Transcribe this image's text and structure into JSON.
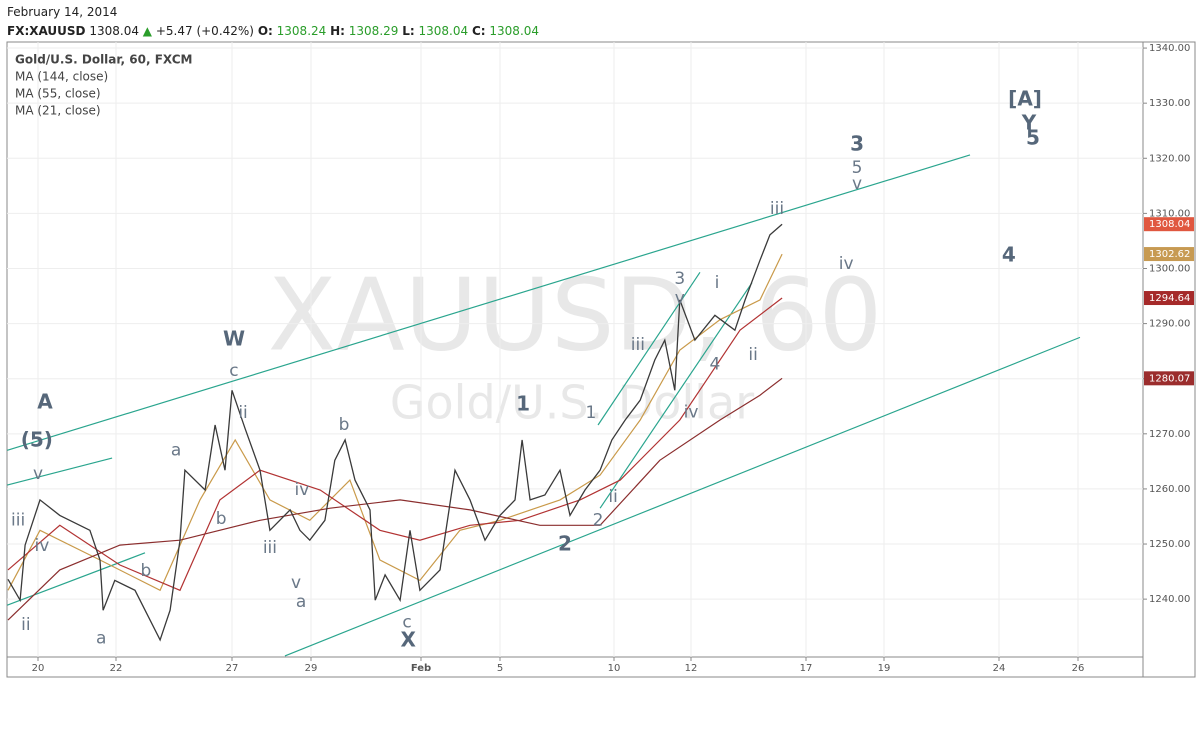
{
  "header": {
    "date": "February 14, 2014",
    "symbol": "FX:XAUUSD",
    "price": "1308.04",
    "arrow": "▲",
    "change": "+5.47 (+0.42%)",
    "ohlc": [
      {
        "label": "O:",
        "value": "1308.24"
      },
      {
        "label": "H:",
        "value": "1308.29"
      },
      {
        "label": "L:",
        "value": "1308.04"
      },
      {
        "label": "C:",
        "value": "1308.04"
      }
    ]
  },
  "chart_data": {
    "type": "line",
    "watermark": [
      "XAUUSD, 60",
      "Gold/U.S. Dollar"
    ],
    "xlim": [
      19.2,
      58.65
    ],
    "ylim": [
      1229.5,
      1341.1
    ],
    "xticks": [
      20,
      22,
      27,
      29,
      {
        "value": 32,
        "label": "Feb"
      },
      {
        "value": 36,
        "label": "5"
      },
      {
        "value": 41,
        "label": "10"
      },
      {
        "value": 43,
        "label": "12"
      },
      {
        "value": 48,
        "label": "17"
      },
      {
        "value": 50,
        "label": "19"
      },
      {
        "value": 55,
        "label": "24"
      },
      {
        "value": 57,
        "label": "26"
      }
    ],
    "yticks": [
      {
        "value": 1240,
        "label": "1240.00"
      },
      {
        "value": 1250,
        "label": "1250.00"
      },
      {
        "value": 1260,
        "label": "1260.00"
      },
      {
        "value": 1270,
        "label": "1270.00"
      },
      {
        "value": 1280,
        "label": "1280.00"
      },
      {
        "value": 1290,
        "label": "1290.00"
      },
      {
        "value": 1300,
        "label": "1300.00"
      },
      {
        "value": 1310,
        "label": "1310.00"
      },
      {
        "value": 1320,
        "label": "1320.00"
      },
      {
        "value": 1330,
        "label": "1330.00"
      },
      {
        "value": 1340,
        "label": "1340.00"
      }
    ],
    "grid": true,
    "series": [
      {
        "name": "Gold/U.S. Dollar, 60, FXCM",
        "color": "#3a3a3a",
        "label_color": "#e0573f",
        "x": [
          19.23,
          19.54,
          19.67,
          20.05,
          20.56,
          21.33,
          21.59,
          21.67,
          21.97,
          22.82,
          23.9,
          24.33,
          24.76,
          24.97,
          25.84,
          26.27,
          26.7,
          27.0,
          27.33,
          27.71,
          27.96,
          28.47,
          28.72,
          28.97,
          29.38,
          29.65,
          29.93,
          30.2,
          30.61,
          30.75,
          31.02,
          31.43,
          31.7,
          31.97,
          32.96,
          33.72,
          34.48,
          35.24,
          36.0,
          36.66,
          36.97,
          37.32,
          37.97,
          38.63,
          39.07,
          39.73,
          40.39,
          40.91,
          41.29,
          41.68,
          42.06,
          42.32,
          42.58,
          42.71,
          43.17,
          44.04,
          44.91,
          45.35,
          46.0,
          46.43,
          46.96
        ],
        "values": [
          1243.6,
          1239.8,
          1249.8,
          1258.0,
          1255.2,
          1252.5,
          1247.1,
          1238.0,
          1243.4,
          1241.6,
          1232.6,
          1238.0,
          1250.7,
          1263.4,
          1259.8,
          1271.6,
          1263.4,
          1277.9,
          1271.0,
          1263.4,
          1252.5,
          1256.2,
          1252.5,
          1250.7,
          1254.3,
          1265.2,
          1268.9,
          1261.6,
          1256.2,
          1239.8,
          1244.4,
          1239.8,
          1252.5,
          1241.6,
          1245.3,
          1263.4,
          1258.0,
          1250.7,
          1255.2,
          1258.0,
          1268.9,
          1258.0,
          1258.9,
          1263.4,
          1255.2,
          1259.8,
          1263.4,
          1268.9,
          1272.5,
          1276.1,
          1283.4,
          1287.0,
          1277.9,
          1294.3,
          1287.0,
          1291.5,
          1288.8,
          1294.3,
          1301.5,
          1306.1,
          1308.04
        ]
      },
      {
        "name": "MA (144, close)",
        "color": "#8b2e2e",
        "label_color": "#9b2d2d",
        "x": [
          19.23,
          20.56,
          22.17,
          24.76,
          27.71,
          29.52,
          31.43,
          34.48,
          37.75,
          40.39,
          42.19,
          44.26,
          46.0,
          46.96
        ],
        "values": [
          1236.2,
          1245.3,
          1249.8,
          1250.7,
          1254.3,
          1256.5,
          1258.0,
          1256.2,
          1253.4,
          1253.4,
          1265.2,
          1272.5,
          1277.0,
          1280.07
        ]
      },
      {
        "name": "MA (55, close)",
        "color": "#b23333",
        "label_color": "#a52a2a",
        "x": [
          19.23,
          20.56,
          22.17,
          24.76,
          26.48,
          27.71,
          29.25,
          30.88,
          31.97,
          34.48,
          36.88,
          39.51,
          41.16,
          42.71,
          45.13,
          46.96
        ],
        "values": [
          1245.3,
          1253.4,
          1246.2,
          1241.6,
          1258.0,
          1263.4,
          1259.8,
          1252.5,
          1250.7,
          1253.4,
          1254.3,
          1258.0,
          1261.6,
          1272.5,
          1288.8,
          1294.64
        ]
      },
      {
        "name": "MA (21, close)",
        "color": "#c99a4a",
        "label_color": "#c79a52",
        "x": [
          19.23,
          20.05,
          21.59,
          23.9,
          25.62,
          27.08,
          27.96,
          28.97,
          30.06,
          30.88,
          31.97,
          33.97,
          36.0,
          38.63,
          40.39,
          41.68,
          42.71,
          44.26,
          46.0,
          46.96
        ],
        "values": [
          1241.6,
          1252.5,
          1247.1,
          1241.6,
          1258.0,
          1268.9,
          1258.0,
          1254.3,
          1261.6,
          1247.1,
          1243.4,
          1252.5,
          1254.3,
          1258.0,
          1262.5,
          1272.5,
          1285.2,
          1290.7,
          1294.3,
          1302.62
        ]
      }
    ],
    "trendline_color": "#2aa58e",
    "trendlines": [
      {
        "x": [
          19.21,
          53.74
        ],
        "y": [
          1267.0,
          1320.6
        ]
      },
      {
        "x": [
          28.34,
          57.05
        ],
        "y": [
          1229.7,
          1287.5
        ]
      },
      {
        "x": [
          19.21,
          21.9
        ],
        "y": [
          1260.7,
          1265.6
        ]
      },
      {
        "x": [
          19.21,
          23.25
        ],
        "y": [
          1238.9,
          1248.4
        ]
      },
      {
        "x": [
          40.3,
          43.39
        ],
        "y": [
          1271.6,
          1299.3
        ]
      },
      {
        "x": [
          40.39,
          45.65
        ],
        "y": [
          1256.5,
          1297.4
        ]
      }
    ],
    "annotations": [
      {
        "text": "A",
        "x": 20.18,
        "y": 1275.6,
        "bold": true
      },
      {
        "text": "(5)",
        "x": 19.97,
        "y": 1268.7,
        "bold": true
      },
      {
        "text": "v",
        "x": 20.0,
        "y": 1262.7
      },
      {
        "text": "iii",
        "x": 19.49,
        "y": 1254.3
      },
      {
        "text": "iv",
        "x": 20.1,
        "y": 1249.6
      },
      {
        "text": "ii",
        "x": 19.69,
        "y": 1235.3
      },
      {
        "text": "a",
        "x": 21.62,
        "y": 1232.9
      },
      {
        "text": "b",
        "x": 23.29,
        "y": 1245.1
      },
      {
        "text": "a",
        "x": 24.59,
        "y": 1267.0
      },
      {
        "text": "b",
        "x": 26.53,
        "y": 1254.5
      },
      {
        "text": "W",
        "x": 27.05,
        "y": 1287.0,
        "bold": true
      },
      {
        "text": "c",
        "x": 27.05,
        "y": 1281.4
      },
      {
        "text": "ii",
        "x": 27.28,
        "y": 1273.8
      },
      {
        "text": "iii",
        "x": 27.96,
        "y": 1249.3
      },
      {
        "text": "iv",
        "x": 28.77,
        "y": 1259.8
      },
      {
        "text": "v",
        "x": 28.62,
        "y": 1242.9
      },
      {
        "text": "a",
        "x": 28.75,
        "y": 1239.5
      },
      {
        "text": "b",
        "x": 29.9,
        "y": 1271.6
      },
      {
        "text": "X",
        "x": 31.65,
        "y": 1232.4,
        "bold": true
      },
      {
        "text": "c",
        "x": 31.62,
        "y": 1235.8
      },
      {
        "text": "1",
        "x": 37.01,
        "y": 1275.2,
        "bold": true
      },
      {
        "text": "2",
        "x": 38.85,
        "y": 1249.8,
        "bold": true
      },
      {
        "text": "1",
        "x": 39.99,
        "y": 1273.8
      },
      {
        "text": "2",
        "x": 40.3,
        "y": 1254.3
      },
      {
        "text": "ii",
        "x": 40.96,
        "y": 1258.5
      },
      {
        "text": "iii",
        "x": 41.62,
        "y": 1286.1
      },
      {
        "text": "3",
        "x": 42.71,
        "y": 1298.1
      },
      {
        "text": "v",
        "x": 42.71,
        "y": 1294.6
      },
      {
        "text": "iv",
        "x": 43.0,
        "y": 1273.9
      },
      {
        "text": "4",
        "x": 44.04,
        "y": 1282.6
      },
      {
        "text": "i",
        "x": 44.13,
        "y": 1297.4
      },
      {
        "text": "ii",
        "x": 45.7,
        "y": 1284.3
      },
      {
        "text": "iii",
        "x": 46.74,
        "y": 1310.8
      },
      {
        "text": "3",
        "x": 49.31,
        "y": 1322.4,
        "bold": true
      },
      {
        "text": "5",
        "x": 49.31,
        "y": 1318.2
      },
      {
        "text": "v",
        "x": 49.31,
        "y": 1315.3
      },
      {
        "text": "iv",
        "x": 49.03,
        "y": 1300.8
      },
      {
        "text": "[A]",
        "x": 55.66,
        "y": 1330.6,
        "bold": true
      },
      {
        "text": "Y",
        "x": 55.76,
        "y": 1326.2,
        "bold": true
      },
      {
        "text": "5",
        "x": 55.86,
        "y": 1323.5,
        "bold": true
      },
      {
        "text": "4",
        "x": 55.25,
        "y": 1302.3,
        "bold": true
      }
    ]
  }
}
